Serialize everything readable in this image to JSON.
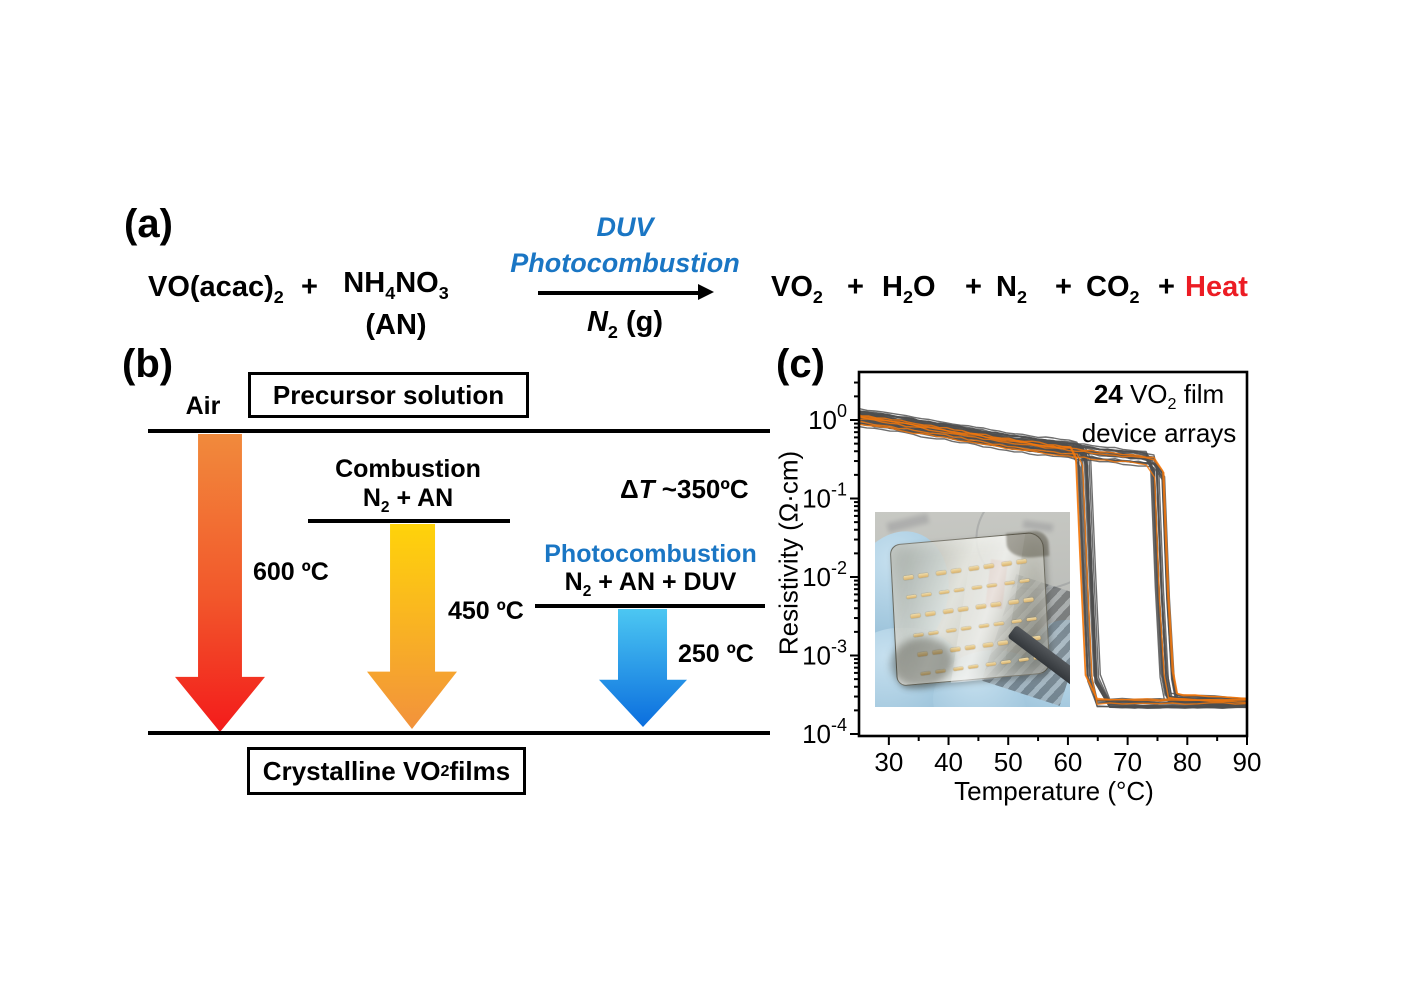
{
  "colors": {
    "blue_text": "#1a76c4",
    "red_text": "#ec1c24",
    "arrow_air_top": "#f18a3c",
    "arrow_air_mid": "#f2572b",
    "arrow_air_bottom": "#f31b1b",
    "arrow_comb_top": "#ffd30a",
    "arrow_comb_bottom": "#f2923c",
    "arrow_photo_top": "#4cc7f2",
    "arrow_photo_bottom": "#0b6ede",
    "glove_main": "#a3c8de",
    "glove_highlight": "#c6e0ef",
    "glove_shadow": "#86aecb",
    "inset_background": "#c7c8c3",
    "gold_contact": "#d9b26c",
    "red_marker": "#b24330"
  },
  "panel_a": {
    "label": "(a)",
    "reactant_1": "VO(acac)_{2}",
    "plus_1": "+",
    "reactant_2_line1": "NH_{4}NO_{3}",
    "reactant_2_line2": "(AN)",
    "arrow_above_line1": "DUV",
    "arrow_above_line2": "Photocombustion",
    "arrow_below": "*{N}_{2} (g)",
    "products": [
      "VO_{2}",
      "+",
      "H_{2}O",
      "+",
      "N_{2}",
      "+",
      "CO_{2}",
      "+",
      "Heat"
    ]
  },
  "panel_b": {
    "label": "(b)",
    "air_label": "Air",
    "precursor_box": "Precursor solution",
    "combustion_line1": "Combustion",
    "combustion_line2": "N_{2} + AN",
    "delta_t": "Δ*{T} ~350ºC",
    "photocombustion_line1": "Photocombustion",
    "photocombustion_line2": "N_{2} + AN + DUV",
    "temp_air": "600 ºC",
    "temp_combustion": "450 ºC",
    "temp_photo": "250 ºC",
    "crystalline_box": "Crystalline VO_{2} films"
  },
  "panel_c": {
    "label": "(c)",
    "inset_description": "photo of flexible VO2 film device array held by gloved hand"
  },
  "chart_data": {
    "type": "line",
    "xlabel": "Temperature (°C)",
    "ylabel": "Resistivity (Ω·cm)",
    "annotation": "#{24} VO_{2} film\ndevice arrays",
    "x_range": [
      25,
      90
    ],
    "y_range_ohm_cm": [
      0.0001,
      3.5
    ],
    "y_scale": "log",
    "grid": false,
    "legend": null,
    "x_major_ticks": [
      30,
      40,
      50,
      60,
      70,
      80,
      90
    ],
    "x_minor_ticks": [
      35,
      45,
      55,
      65,
      75,
      85
    ],
    "y_major_exponents": [
      0,
      -1,
      -2,
      -3,
      -4
    ],
    "curve_colors": {
      "gray": "#4e4e4e",
      "orange": "#f4770b"
    },
    "series_model": {
      "description": "R-T hysteresis loops of 24 VO2 film devices, heating and cooling branches",
      "device_count": 24,
      "orange_device_indices": [
        4,
        11,
        18
      ],
      "upper_branch_ohm_cm": [
        [
          25,
          1.05
        ],
        [
          30,
          0.93
        ],
        [
          35,
          0.8
        ],
        [
          40,
          0.7
        ],
        [
          45,
          0.6
        ],
        [
          50,
          0.52
        ],
        [
          55,
          0.46
        ],
        [
          60,
          0.415
        ],
        [
          62,
          0.4
        ],
        [
          65,
          0.375
        ],
        [
          70,
          0.345
        ],
        [
          73,
          0.325
        ],
        [
          76,
          0.31
        ],
        [
          78,
          0.3
        ]
      ],
      "low_state_ohm_cm": 0.00028,
      "heating_transition_c": {
        "mean": 75.3,
        "spread": 1.2
      },
      "cooling_transition_c": {
        "mean": 63.3,
        "spread": 1.5
      },
      "device_scatter_decades": 0.11
    }
  }
}
